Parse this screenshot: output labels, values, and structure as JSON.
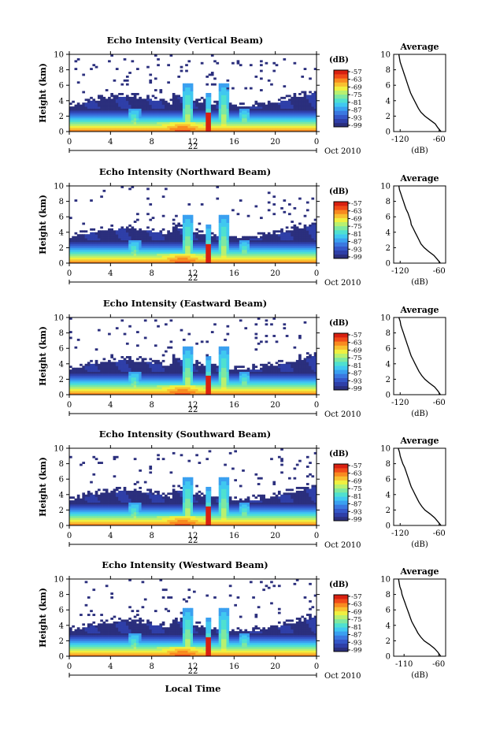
{
  "common": {
    "ylabel": "Height (km)",
    "y_ticks": [
      "0",
      "2",
      "4",
      "6",
      "8",
      "10"
    ],
    "x_ticks": [
      "0",
      "4",
      "8",
      "12",
      "16",
      "20",
      "0"
    ],
    "date_day": "22",
    "date_suffix": "Oct 2010",
    "colorbar_unit": "(dB)",
    "colorbar_ticks": [
      "-57",
      "-63",
      "-69",
      "-75",
      "-81",
      "-87",
      "-93",
      "-99"
    ],
    "avg_title": "Average",
    "avg_xlabel": "(dB)",
    "footer_xlabel": "Local Time",
    "colormap": [
      "#2b2f7d",
      "#2f3fa8",
      "#3457c8",
      "#3a78e0",
      "#3aa0f0",
      "#40c8f0",
      "#4fe0d0",
      "#7fe8a0",
      "#b8f070",
      "#f0f040",
      "#f8c030",
      "#f88a20",
      "#f04a18",
      "#d82010"
    ]
  },
  "chart_data": [
    {
      "type": "heatmap",
      "title": "Echo Intensity (Vertical Beam)",
      "xlim": [
        0,
        24
      ],
      "ylim": [
        0,
        10
      ],
      "avg_xticks": [
        "-120",
        "-60"
      ],
      "avg_xlim": [
        -130,
        -50
      ],
      "average_profile": {
        "height_km": [
          0,
          0.5,
          1,
          1.5,
          2,
          2.5,
          3,
          3.5,
          4,
          4.5,
          5,
          5.5,
          6,
          6.5,
          7,
          7.5,
          8,
          8.5,
          9,
          9.5,
          10
        ],
        "db": [
          -57,
          -62,
          -66,
          -74,
          -82,
          -88,
          -92,
          -95,
          -98,
          -101,
          -104,
          -106,
          -108,
          -110,
          -112,
          -114,
          -116,
          -118,
          -120,
          -121,
          -122
        ]
      }
    },
    {
      "type": "heatmap",
      "title": "Echo Intensity (Northward Beam)",
      "xlim": [
        0,
        24
      ],
      "ylim": [
        0,
        10
      ],
      "avg_xticks": [
        "-120",
        "-60"
      ],
      "avg_xlim": [
        -130,
        -50
      ],
      "average_profile": {
        "height_km": [
          0,
          0.5,
          1,
          1.5,
          2,
          2.5,
          3,
          3.5,
          4,
          4.5,
          5,
          5.5,
          6,
          6.5,
          7,
          7.5,
          8,
          8.5,
          9,
          9.5,
          10
        ],
        "db": [
          -58,
          -63,
          -68,
          -76,
          -83,
          -88,
          -91,
          -94,
          -97,
          -100,
          -103,
          -104,
          -106,
          -108,
          -111,
          -113,
          -115,
          -117,
          -119,
          -121,
          -122
        ]
      }
    },
    {
      "type": "heatmap",
      "title": "Echo Intensity (Eastward Beam)",
      "xlim": [
        0,
        24
      ],
      "ylim": [
        0,
        10
      ],
      "avg_xticks": [
        "-120",
        "-60"
      ],
      "avg_xlim": [
        -130,
        -50
      ],
      "average_profile": {
        "height_km": [
          0,
          0.5,
          1,
          1.5,
          2,
          2.5,
          3,
          3.5,
          4,
          4.5,
          5,
          5.5,
          6,
          6.5,
          7,
          7.5,
          8,
          8.5,
          9,
          9.5,
          10
        ],
        "db": [
          -58,
          -62,
          -67,
          -75,
          -82,
          -87,
          -91,
          -94,
          -97,
          -100,
          -103,
          -105,
          -107,
          -109,
          -111,
          -113,
          -115,
          -117,
          -119,
          -120,
          -122
        ]
      }
    },
    {
      "type": "heatmap",
      "title": "Echo Intensity (Southward Beam)",
      "xlim": [
        0,
        24
      ],
      "ylim": [
        0,
        10
      ],
      "avg_xticks": [
        "-120",
        "-60"
      ],
      "avg_xlim": [
        -130,
        -50
      ],
      "average_profile": {
        "height_km": [
          0,
          0.5,
          1,
          1.5,
          2,
          2.5,
          3,
          3.5,
          4,
          4.5,
          5,
          5.5,
          6,
          6.5,
          7,
          7.5,
          8,
          8.5,
          9,
          9.5,
          10
        ],
        "db": [
          -57,
          -62,
          -67,
          -74,
          -82,
          -87,
          -91,
          -94,
          -97,
          -100,
          -103,
          -105,
          -107,
          -109,
          -111,
          -113,
          -116,
          -118,
          -120,
          -121,
          -123
        ]
      }
    },
    {
      "type": "heatmap",
      "title": "Echo Intensity (Westward Beam)",
      "xlim": [
        0,
        24
      ],
      "ylim": [
        0,
        10
      ],
      "avg_xticks": [
        "-110",
        "-60"
      ],
      "avg_xlim": [
        -125,
        -50
      ],
      "average_profile": {
        "height_km": [
          0,
          0.5,
          1,
          1.5,
          2,
          2.5,
          3,
          3.5,
          4,
          4.5,
          5,
          5.5,
          6,
          6.5,
          7,
          7.5,
          8,
          8.5,
          9,
          9.5,
          10
        ],
        "db": [
          -57,
          -61,
          -66,
          -73,
          -81,
          -86,
          -90,
          -93,
          -96,
          -99,
          -101,
          -103,
          -105,
          -107,
          -109,
          -111,
          -113,
          -114,
          -116,
          -117,
          -118
        ]
      }
    }
  ]
}
